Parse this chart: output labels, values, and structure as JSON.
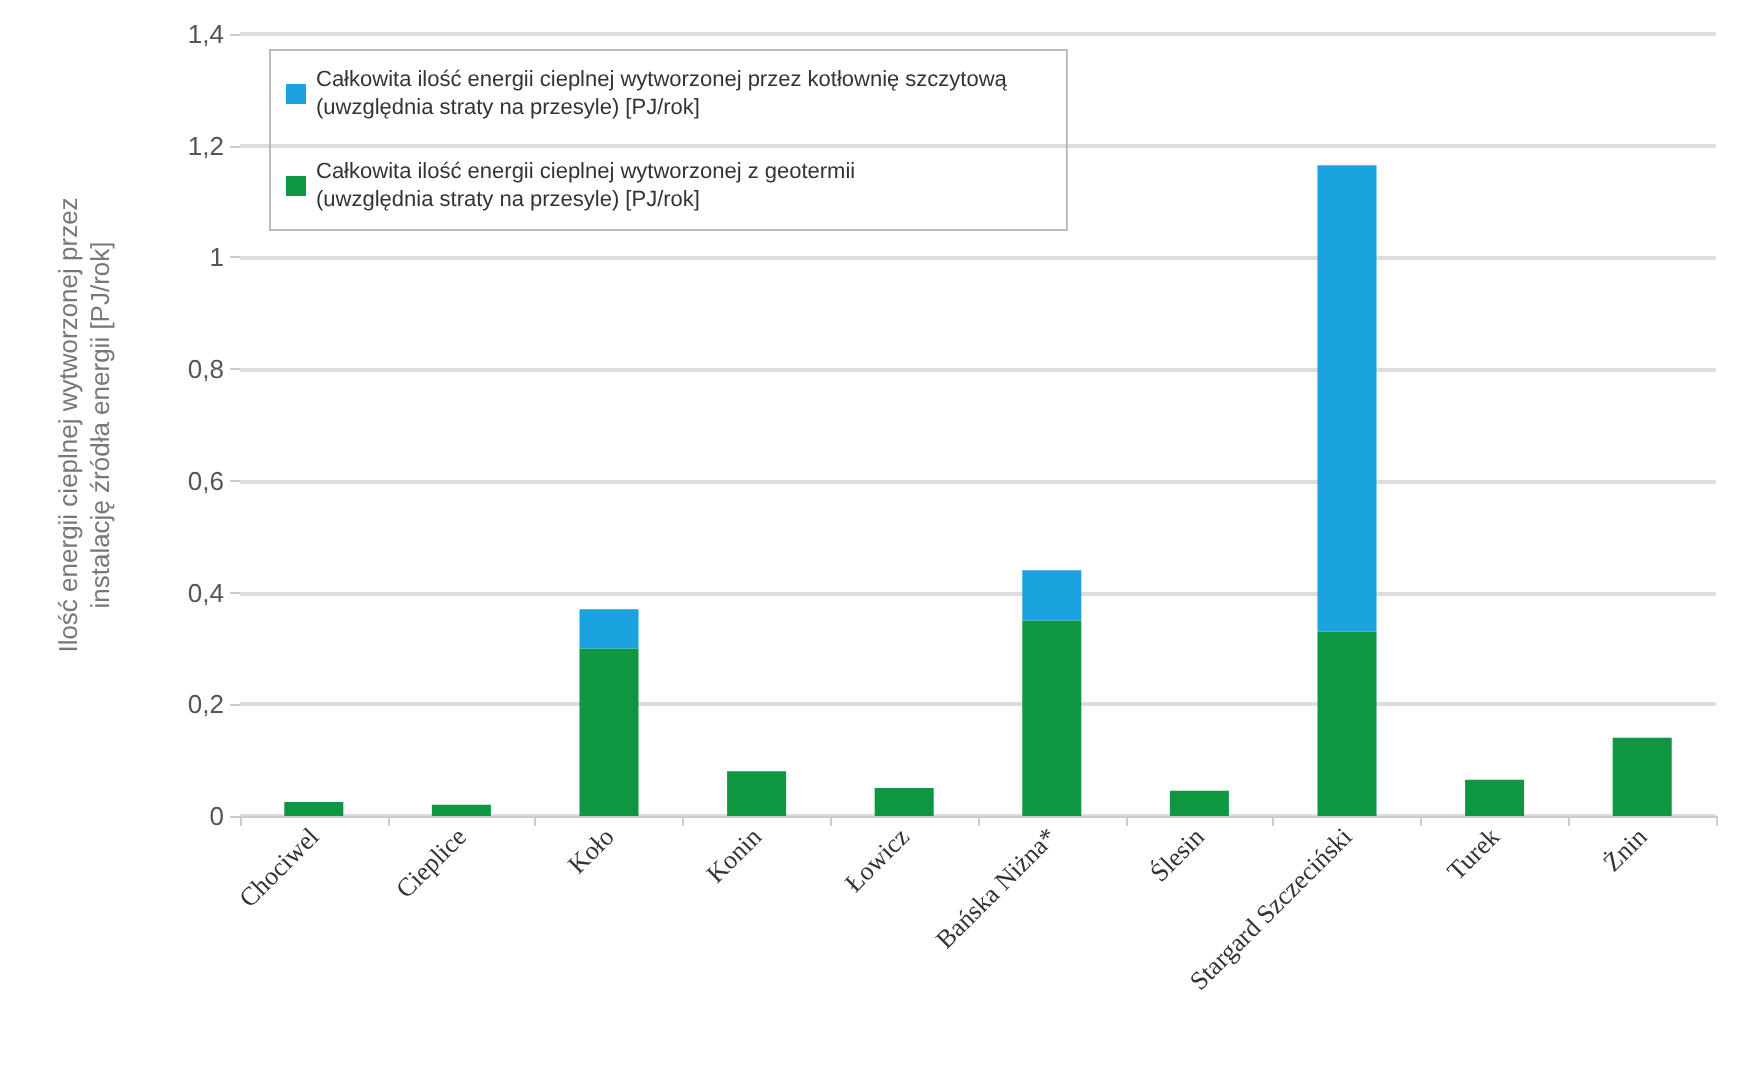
{
  "chart_data": {
    "type": "bar",
    "stacked": true,
    "ylabel": "Ilość energii cieplnej wytworzonej przez\ninstalację źródła energii [PJ/rok]",
    "categories": [
      "Chociwel",
      "Cieplice",
      "Koło",
      "Konin",
      "Łowicz",
      "Bańska Niżna*",
      "Ślesin",
      "Stargard Szczeciński",
      "Turek",
      "Żnin"
    ],
    "series": [
      {
        "name": "Całkowita ilość energii cieplnej wytworzonej z geotermii\n(uwzględnia straty na przesyle) [PJ/rok]",
        "color": "#0f9640",
        "values": [
          0.025,
          0.02,
          0.3,
          0.08,
          0.05,
          0.35,
          0.045,
          0.33,
          0.065,
          0.14
        ]
      },
      {
        "name": "Całkowita ilość energii cieplnej wytworzonej przez kotłownię szczytową\n(uwzględnia straty na przesyle) [PJ/rok]",
        "color": "#1ba3e0",
        "values": [
          0,
          0,
          0.07,
          0,
          0,
          0.09,
          0,
          0.835,
          0,
          0
        ]
      }
    ],
    "ylim": [
      0,
      1.4
    ],
    "yticks": [
      0,
      {
        "value": 0.2,
        "label": "0,2"
      },
      {
        "value": 0.4,
        "label": "0,4"
      },
      {
        "value": 0.6,
        "label": "0,6"
      },
      {
        "value": 0.8,
        "label": "0,8"
      },
      1,
      {
        "value": 1.2,
        "label": "1,2"
      },
      {
        "value": 1.4,
        "label": "1,4"
      }
    ],
    "grid": true,
    "legend": "top left"
  }
}
